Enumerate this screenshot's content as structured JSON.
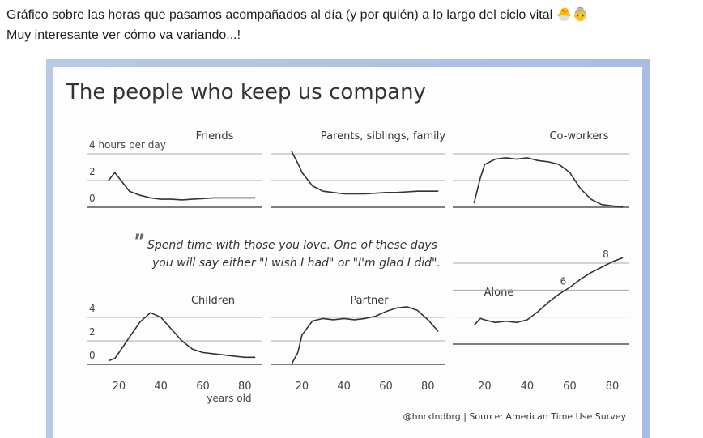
{
  "post": {
    "lines": [
      "Gráfico sobre las horas que pasamos acompañados al día (y por quién) a lo largo del ciclo vital 🐣👵",
      "Muy interesante ver cómo va variando...!"
    ]
  },
  "figure": {
    "title": "The people who keep us company",
    "quote_mark": "”",
    "quote": [
      "Spend time with those you love. One of these days",
      "you will say either \"I wish I had\" or \"I'm glad I did\"."
    ],
    "source": "@hnrklndbrg | Source: American Time Use Survey"
  },
  "chart_data": [
    {
      "type": "line",
      "title": "Friends",
      "color": "#333333",
      "x": [
        15,
        18,
        20,
        25,
        30,
        35,
        40,
        45,
        50,
        55,
        60,
        65,
        70,
        75,
        80,
        85
      ],
      "values": [
        2.0,
        2.6,
        2.2,
        1.2,
        0.9,
        0.7,
        0.6,
        0.6,
        0.55,
        0.6,
        0.65,
        0.7,
        0.7,
        0.7,
        0.7,
        0.7
      ],
      "xlim": [
        5,
        88
      ],
      "xticks": [
        20,
        40,
        60,
        80
      ],
      "show_xtick_labels": false,
      "ylim": [
        0,
        4
      ],
      "yticks": [
        0,
        2,
        {
          "value": 4,
          "label": "4 hours per day"
        }
      ],
      "ytick_labels_shown": [
        true,
        true,
        true
      ]
    },
    {
      "type": "line",
      "title": "Parents, siblings, family",
      "color": "#333333",
      "x": [
        15,
        18,
        20,
        25,
        30,
        35,
        40,
        45,
        50,
        55,
        60,
        65,
        70,
        75,
        80,
        85
      ],
      "values": [
        4.2,
        3.3,
        2.6,
        1.6,
        1.2,
        1.1,
        1.0,
        1.0,
        1.0,
        1.05,
        1.1,
        1.1,
        1.15,
        1.2,
        1.2,
        1.2
      ],
      "xlim": [
        5,
        88
      ],
      "xticks": [
        20,
        40,
        60,
        80
      ],
      "show_xtick_labels": false,
      "ylim": [
        0,
        4
      ],
      "yticks": [
        0,
        2,
        4
      ],
      "ytick_labels_shown": [
        false,
        false,
        false
      ]
    },
    {
      "type": "line",
      "title": "Co-workers",
      "color": "#333333",
      "x": [
        15,
        18,
        20,
        25,
        30,
        35,
        40,
        45,
        50,
        55,
        60,
        65,
        70,
        75,
        80,
        85
      ],
      "values": [
        0.3,
        2.2,
        3.2,
        3.6,
        3.7,
        3.6,
        3.7,
        3.5,
        3.4,
        3.2,
        2.6,
        1.4,
        0.6,
        0.2,
        0.1,
        0.0
      ],
      "xlim": [
        5,
        88
      ],
      "xticks": [
        20,
        40,
        60,
        80
      ],
      "show_xtick_labels": false,
      "ylim": [
        0,
        4
      ],
      "yticks": [
        0,
        2,
        4
      ],
      "ytick_labels_shown": [
        false,
        false,
        false
      ]
    },
    {
      "type": "line",
      "title": "Children",
      "color": "#333333",
      "x": [
        15,
        18,
        20,
        25,
        30,
        35,
        40,
        45,
        50,
        55,
        60,
        65,
        70,
        75,
        80,
        85
      ],
      "values": [
        0.3,
        0.5,
        1.0,
        2.3,
        3.6,
        4.4,
        4.0,
        3.0,
        2.0,
        1.3,
        1.0,
        0.9,
        0.8,
        0.7,
        0.6,
        0.6
      ],
      "xlim": [
        5,
        88
      ],
      "xticks": [
        20,
        40,
        60,
        80
      ],
      "show_xtick_labels": true,
      "xlabel": "years old",
      "ylim": [
        0,
        4
      ],
      "yticks": [
        0,
        2,
        4
      ],
      "ytick_labels_shown": [
        true,
        true,
        true
      ]
    },
    {
      "type": "line",
      "title": "Partner",
      "color": "#333333",
      "x": [
        15,
        18,
        20,
        25,
        30,
        35,
        40,
        45,
        50,
        55,
        60,
        65,
        70,
        75,
        80,
        85
      ],
      "values": [
        0,
        1.0,
        2.5,
        3.7,
        3.9,
        3.8,
        3.9,
        3.8,
        3.9,
        4.1,
        4.5,
        4.8,
        4.9,
        4.6,
        3.8,
        2.8
      ],
      "xlim": [
        5,
        88
      ],
      "xticks": [
        20,
        40,
        60,
        80
      ],
      "show_xtick_labels": true,
      "ylim": [
        0,
        4
      ],
      "yticks": [
        0,
        2,
        4
      ],
      "ytick_labels_shown": [
        false,
        false,
        false
      ]
    },
    {
      "type": "line",
      "title": "Alone",
      "color": "#333333",
      "x": [
        15,
        18,
        20,
        25,
        30,
        35,
        40,
        45,
        50,
        55,
        60,
        65,
        70,
        75,
        80,
        85
      ],
      "values": [
        3.4,
        3.9,
        3.8,
        3.6,
        3.7,
        3.6,
        3.8,
        4.4,
        5.1,
        5.7,
        6.2,
        6.8,
        7.3,
        7.7,
        8.1,
        8.4
      ],
      "xlim": [
        5,
        88
      ],
      "xticks": [
        20,
        40,
        60,
        80
      ],
      "show_xtick_labels": true,
      "ylim": [
        2,
        8
      ],
      "yticks": [
        2,
        4,
        6,
        8
      ],
      "ytick_labels_shown": [
        false,
        false,
        true,
        true
      ]
    }
  ]
}
